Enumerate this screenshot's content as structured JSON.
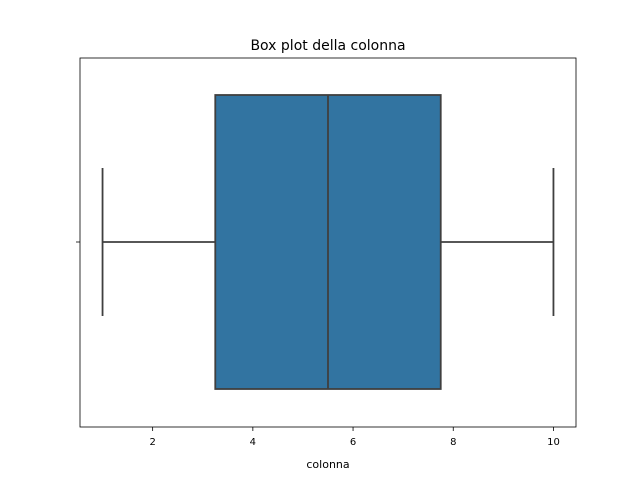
{
  "chart_data": {
    "type": "boxplot",
    "title": "Box plot della colonna",
    "xlabel": "colonna",
    "ylabel": "",
    "orientation": "horizontal",
    "xlim": [
      0.55,
      10.45
    ],
    "xticks": [
      2,
      4,
      6,
      8,
      10
    ],
    "grid": false,
    "box": {
      "min": 1,
      "q1": 3.25,
      "median": 5.5,
      "q3": 7.75,
      "max": 10
    },
    "colors": {
      "box_fill": "#3274a1",
      "line": "#3f3f3f",
      "axes": "#000000"
    }
  }
}
